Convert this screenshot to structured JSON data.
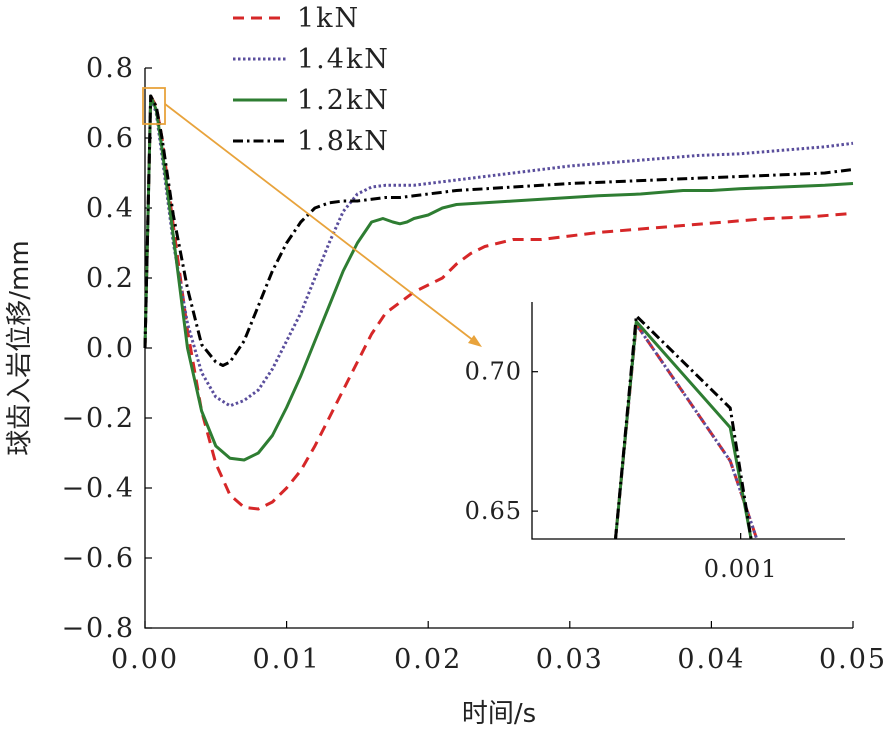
{
  "chart_data": {
    "type": "line",
    "xlabel": "时间/s",
    "ylabel": "球齿入岩位移/mm",
    "xlim": [
      0,
      0.05
    ],
    "ylim": [
      -0.8,
      0.8
    ],
    "xticks": [
      "0.00",
      "0.01",
      "0.02",
      "0.03",
      "0.04",
      "0.05"
    ],
    "yticks": [
      "0.8",
      "0.6",
      "0.4",
      "0.2",
      "0.0",
      "-0.2",
      "-0.4",
      "-0.6",
      "-0.8"
    ],
    "legend_position": "top-left",
    "series": [
      {
        "name": "1kN",
        "color": "#d62728",
        "dash": "dashed",
        "x": [
          0,
          0.0004,
          0.0008,
          0.0012,
          0.002,
          0.003,
          0.004,
          0.005,
          0.006,
          0.007,
          0.008,
          0.009,
          0.01,
          0.011,
          0.012,
          0.013,
          0.014,
          0.015,
          0.016,
          0.017,
          0.018,
          0.019,
          0.02,
          0.021,
          0.022,
          0.023,
          0.024,
          0.025,
          0.026,
          0.028,
          0.03,
          0.032,
          0.035,
          0.038,
          0.041,
          0.044,
          0.047,
          0.05
        ],
        "y": [
          0,
          0.72,
          0.69,
          0.6,
          0.35,
          0.05,
          -0.18,
          -0.33,
          -0.42,
          -0.455,
          -0.46,
          -0.44,
          -0.4,
          -0.35,
          -0.28,
          -0.2,
          -0.12,
          -0.04,
          0.04,
          0.1,
          0.13,
          0.16,
          0.18,
          0.2,
          0.24,
          0.27,
          0.29,
          0.3,
          0.31,
          0.31,
          0.32,
          0.33,
          0.34,
          0.35,
          0.36,
          0.37,
          0.375,
          0.385
        ]
      },
      {
        "name": "1.4kN",
        "color": "#5a4e9c",
        "dash": "dotted",
        "x": [
          0,
          0.0004,
          0.0008,
          0.0012,
          0.002,
          0.003,
          0.004,
          0.005,
          0.006,
          0.007,
          0.008,
          0.009,
          0.01,
          0.011,
          0.012,
          0.013,
          0.014,
          0.015,
          0.016,
          0.017,
          0.018,
          0.019,
          0.02,
          0.022,
          0.024,
          0.026,
          0.028,
          0.03,
          0.033,
          0.036,
          0.039,
          0.042,
          0.045,
          0.048,
          0.05
        ],
        "y": [
          0,
          0.72,
          0.67,
          0.55,
          0.3,
          0.07,
          -0.07,
          -0.14,
          -0.165,
          -0.15,
          -0.12,
          -0.06,
          0.02,
          0.1,
          0.2,
          0.3,
          0.39,
          0.44,
          0.46,
          0.465,
          0.465,
          0.465,
          0.47,
          0.48,
          0.49,
          0.5,
          0.51,
          0.52,
          0.53,
          0.54,
          0.55,
          0.555,
          0.565,
          0.575,
          0.585
        ]
      },
      {
        "name": "1.2kN",
        "color": "#2e7d32",
        "dash": "solid",
        "x": [
          0,
          0.0004,
          0.0008,
          0.0012,
          0.002,
          0.003,
          0.004,
          0.005,
          0.006,
          0.007,
          0.008,
          0.009,
          0.01,
          0.011,
          0.012,
          0.013,
          0.014,
          0.015,
          0.016,
          0.0168,
          0.0175,
          0.018,
          0.0185,
          0.019,
          0.02,
          0.021,
          0.022,
          0.024,
          0.026,
          0.028,
          0.03,
          0.032,
          0.035,
          0.038,
          0.04,
          0.042,
          0.045,
          0.048,
          0.05
        ],
        "y": [
          0,
          0.72,
          0.68,
          0.57,
          0.32,
          0.0,
          -0.18,
          -0.28,
          -0.315,
          -0.32,
          -0.3,
          -0.25,
          -0.17,
          -0.08,
          0.02,
          0.12,
          0.22,
          0.3,
          0.36,
          0.37,
          0.36,
          0.355,
          0.36,
          0.37,
          0.38,
          0.4,
          0.41,
          0.415,
          0.42,
          0.425,
          0.43,
          0.435,
          0.44,
          0.45,
          0.45,
          0.455,
          0.46,
          0.465,
          0.47
        ]
      },
      {
        "name": "1.8kN",
        "color": "#000000",
        "dash": "dashdot",
        "x": [
          0,
          0.0004,
          0.0008,
          0.0012,
          0.002,
          0.003,
          0.004,
          0.005,
          0.0055,
          0.006,
          0.007,
          0.008,
          0.009,
          0.01,
          0.011,
          0.012,
          0.013,
          0.014,
          0.015,
          0.016,
          0.017,
          0.018,
          0.019,
          0.02,
          0.022,
          0.024,
          0.026,
          0.028,
          0.03,
          0.033,
          0.036,
          0.039,
          0.042,
          0.045,
          0.048,
          0.05
        ],
        "y": [
          0,
          0.72,
          0.69,
          0.6,
          0.38,
          0.17,
          0.01,
          -0.04,
          -0.05,
          -0.04,
          0.02,
          0.12,
          0.22,
          0.3,
          0.36,
          0.4,
          0.415,
          0.42,
          0.42,
          0.425,
          0.43,
          0.43,
          0.435,
          0.44,
          0.45,
          0.455,
          0.46,
          0.465,
          0.47,
          0.475,
          0.48,
          0.485,
          0.49,
          0.495,
          0.5,
          0.51
        ]
      }
    ],
    "inset": {
      "xlim": [
        0.0,
        0.0015
      ],
      "ylim": [
        0.64,
        0.725
      ],
      "xticks_vals": [
        0.001
      ],
      "xticks": [
        "0.001"
      ],
      "yticks_vals": [
        0.7,
        0.65
      ],
      "yticks": [
        "0.70",
        "0.65"
      ],
      "series": [
        {
          "ref": 0,
          "x": [
            0.0004,
            0.0005,
            0.00095,
            0.0011
          ],
          "y": [
            0.64,
            0.717,
            0.668,
            0.635
          ]
        },
        {
          "ref": 1,
          "x": [
            0.0004,
            0.0005,
            0.00095,
            0.0011
          ],
          "y": [
            0.64,
            0.717,
            0.668,
            0.635
          ]
        },
        {
          "ref": 2,
          "x": [
            0.0004,
            0.0005,
            0.00095,
            0.00105
          ],
          "y": [
            0.64,
            0.718,
            0.68,
            0.64
          ]
        },
        {
          "ref": 3,
          "x": [
            0.0004,
            0.0005,
            0.00095,
            0.00105
          ],
          "y": [
            0.64,
            0.72,
            0.687,
            0.64
          ]
        }
      ]
    }
  }
}
